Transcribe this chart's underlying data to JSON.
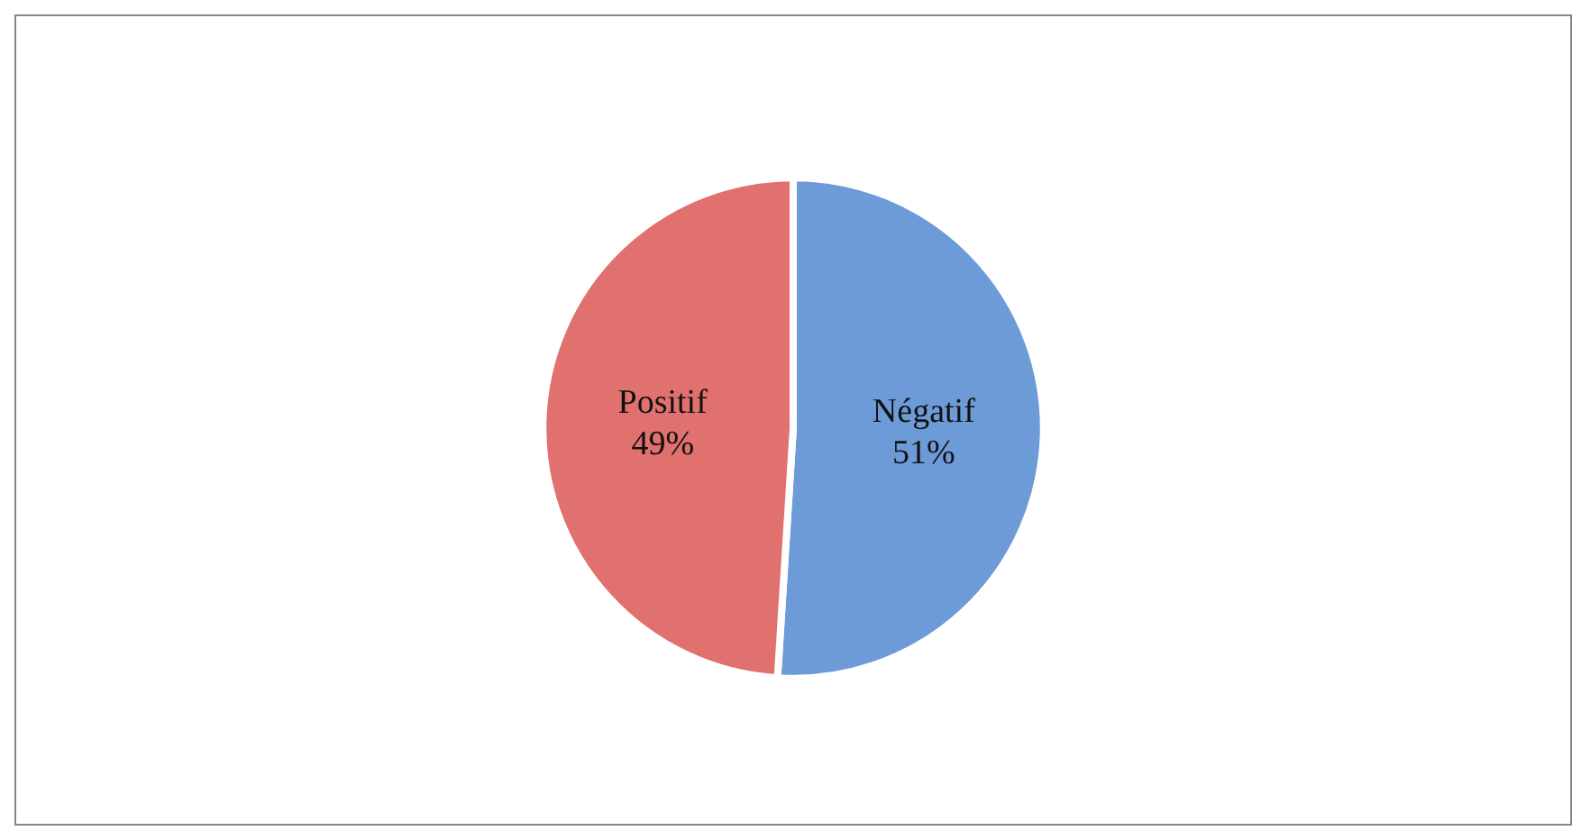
{
  "chart_data": {
    "type": "pie",
    "categories": [
      "Négatif",
      "Positif"
    ],
    "values": [
      51,
      49
    ],
    "colors": [
      "#6d9bd8",
      "#e0716e"
    ],
    "value_labels": [
      "51%",
      "49%"
    ],
    "legend": false
  }
}
